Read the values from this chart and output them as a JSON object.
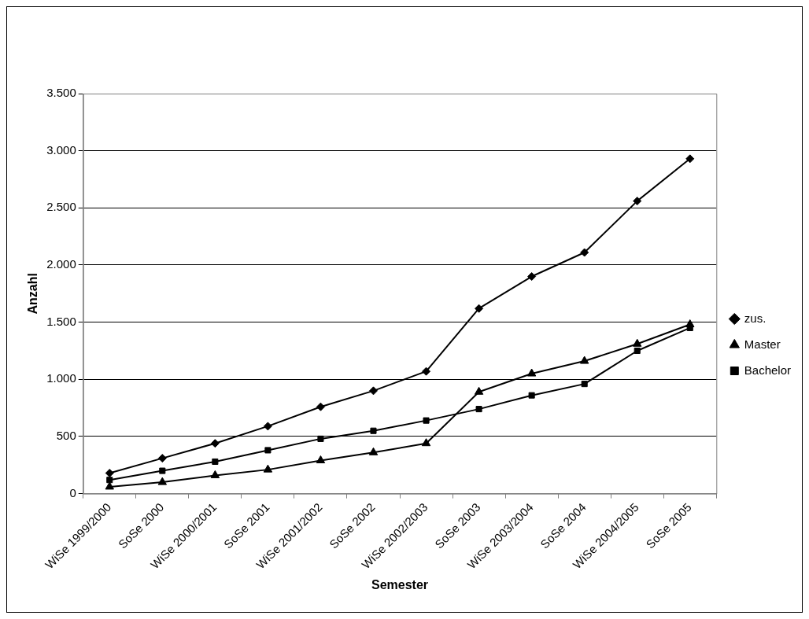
{
  "chart_data": {
    "type": "line",
    "xlabel": "Semester",
    "ylabel": "Anzahl",
    "categories": [
      "WiSe 1999/2000",
      "SoSe 2000",
      "WiSe 2000/2001",
      "SoSe 2001",
      "WiSe 2001/2002",
      "SoSe 2002",
      "WiSe 2002/2003",
      "SoSe 2003",
      "WiSe 2003/2004",
      "SoSe 2004",
      "WiSe 2004/2005",
      "SoSe 2005"
    ],
    "series": [
      {
        "name": "zus.",
        "color": "#000000",
        "marker": "diamond",
        "values": [
          180,
          310,
          440,
          590,
          760,
          900,
          1070,
          1620,
          1900,
          2110,
          2560,
          2930
        ]
      },
      {
        "name": "Master",
        "color": "#000000",
        "marker": "triangle",
        "values": [
          60,
          100,
          160,
          210,
          290,
          360,
          440,
          890,
          1050,
          1160,
          1310,
          1480
        ]
      },
      {
        "name": "Bachelor",
        "color": "#000000",
        "marker": "square",
        "values": [
          120,
          200,
          280,
          380,
          480,
          550,
          640,
          740,
          860,
          960,
          1250,
          1450
        ]
      }
    ],
    "ylim": [
      0,
      3500
    ],
    "yticks": [
      {
        "value": 0,
        "label": "0"
      },
      {
        "value": 500,
        "label": "500"
      },
      {
        "value": 1000,
        "label": "1.000"
      },
      {
        "value": 1500,
        "label": "1.500"
      },
      {
        "value": 2000,
        "label": "2.000"
      },
      {
        "value": 2500,
        "label": "2.500"
      },
      {
        "value": 3000,
        "label": "3.000"
      },
      {
        "value": 3500,
        "label": "3.500"
      }
    ],
    "grid": "y",
    "legend": "right",
    "line_style": "solid"
  }
}
